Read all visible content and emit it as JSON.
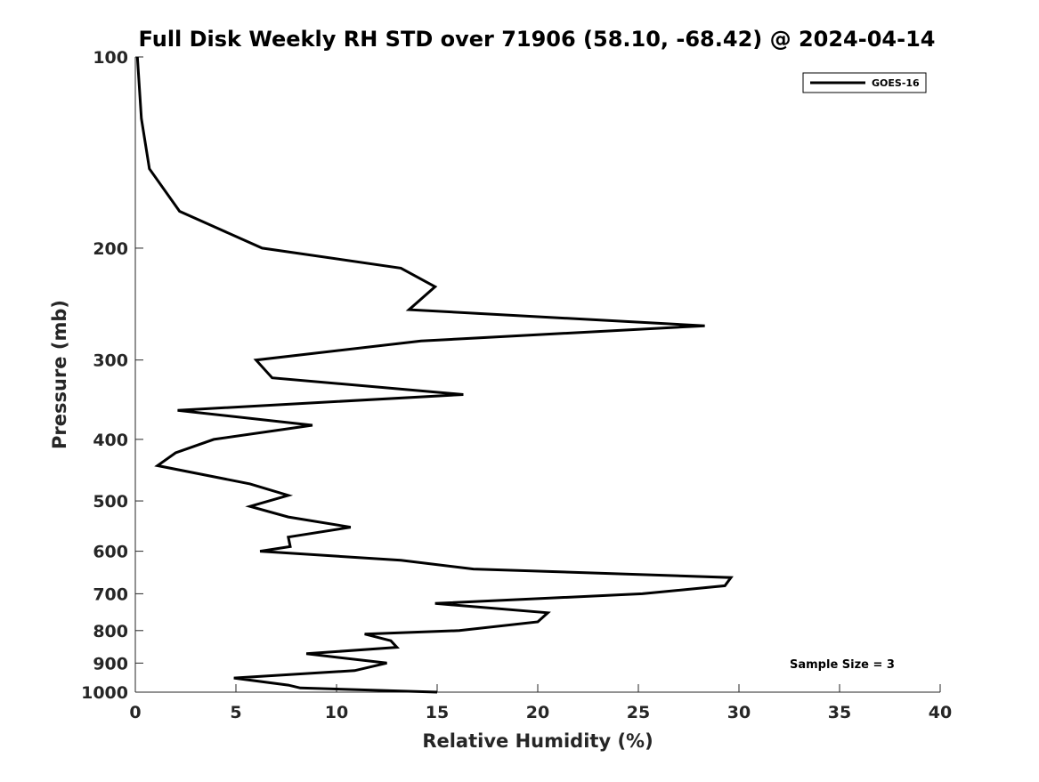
{
  "chart_data": {
    "type": "line",
    "title": "Full Disk Weekly RH STD over 71906 (58.10, -68.42) @ 2024-04-14",
    "xlabel": "Relative Humidity (%)",
    "ylabel": "Pressure (mb)",
    "xlim": [
      0,
      40
    ],
    "ylim": [
      100,
      1000
    ],
    "yscale": "log",
    "y_reversed": true,
    "x_ticks": [
      0,
      5,
      10,
      15,
      20,
      25,
      30,
      35,
      40
    ],
    "y_ticks": [
      100,
      200,
      300,
      400,
      500,
      600,
      700,
      800,
      900,
      1000
    ],
    "grid": false,
    "legend_position": "top-right",
    "annotation": "Sample Size = 3",
    "series": [
      {
        "name": "GOES-16",
        "color": "#000000",
        "x": [
          0.1,
          0.3,
          0.7,
          2.2,
          6.3,
          13.2,
          14.9,
          13.6,
          28.3,
          14.2,
          6.0,
          6.8,
          16.3,
          2.1,
          8.8,
          3.9,
          2.0,
          1.1,
          5.7,
          7.6,
          5.7,
          7.6,
          10.7,
          7.6,
          7.7,
          6.2,
          13.2,
          16.8,
          29.6,
          29.3,
          25.2,
          14.9,
          20.5,
          20.0,
          16.1,
          11.4,
          12.7,
          13.0,
          8.5,
          12.5,
          10.9,
          4.9,
          7.6,
          8.2,
          15.0
        ],
        "y": [
          100,
          125,
          150,
          175,
          200,
          215,
          230,
          250,
          265,
          280,
          300,
          320,
          340,
          360,
          380,
          400,
          420,
          440,
          470,
          490,
          510,
          530,
          550,
          570,
          590,
          600,
          620,
          640,
          660,
          680,
          700,
          725,
          750,
          775,
          800,
          810,
          830,
          850,
          870,
          900,
          925,
          950,
          975,
          985,
          1000
        ]
      }
    ]
  }
}
